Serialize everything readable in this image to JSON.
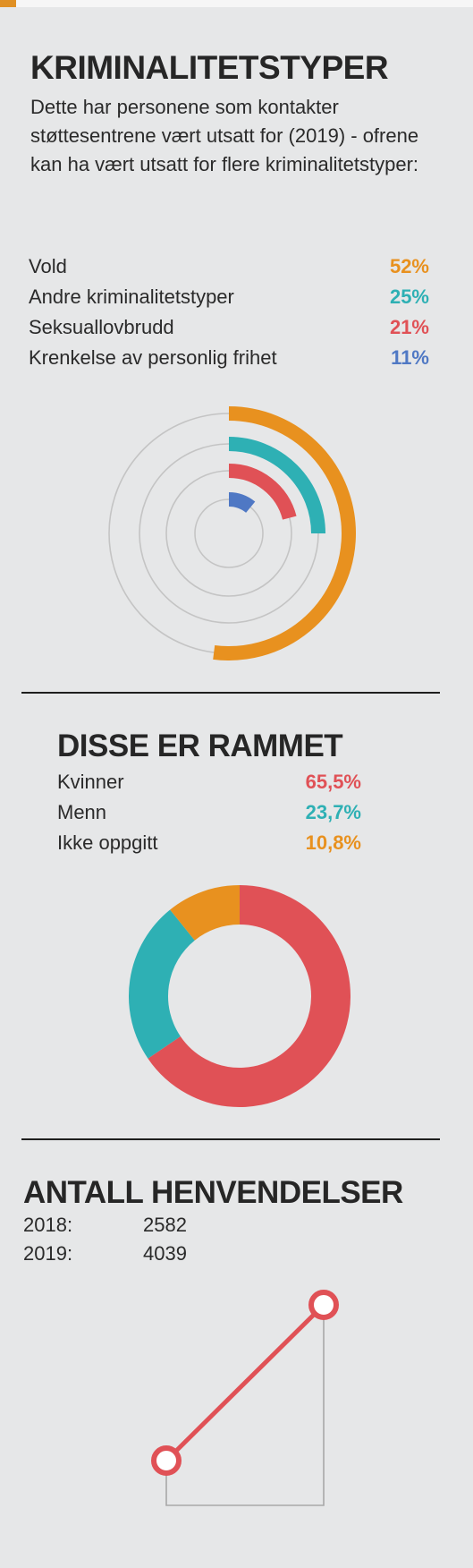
{
  "colors": {
    "orange": "#e8911f",
    "teal": "#2eb0b4",
    "red": "#e05156",
    "blue": "#4f78c4",
    "grid": "#c4c4c4",
    "dark": "#262626"
  },
  "section1": {
    "title": "KRIMINALITETSTYPER",
    "intro": "Dette har personene som kontakter støttesentrene vært utsatt for (2019) - ofrene kan ha vært utsatt for flere kriminalitetstyper:"
  },
  "section2": {
    "title": "DISSE ER RAMMET"
  },
  "section3": {
    "title": "ANTALL HENVENDELSER"
  },
  "chart_data": [
    {
      "type": "radial-bar",
      "title": "KRIMINALITETSTYPER",
      "categories": [
        "Vold",
        "Andre kriminalitetstyper",
        "Seksuallovbrudd",
        "Krenkelse av personlig frihet"
      ],
      "values": [
        52,
        25,
        21,
        11
      ],
      "labels": [
        "52%",
        "25%",
        "21%",
        "11%"
      ],
      "colors": [
        "#e8911f",
        "#2eb0b4",
        "#e05156",
        "#4f78c4"
      ]
    },
    {
      "type": "pie",
      "title": "DISSE ER RAMMET",
      "categories": [
        "Kvinner",
        "Menn",
        "Ikke oppgitt"
      ],
      "values": [
        65.5,
        23.7,
        10.8
      ],
      "labels": [
        "65,5%",
        "23,7%",
        "10,8%"
      ],
      "colors": [
        "#e05156",
        "#2eb0b4",
        "#e8911f"
      ]
    },
    {
      "type": "line",
      "title": "ANTALL HENVENDELSER",
      "x": [
        "2018:",
        "2019:"
      ],
      "values": [
        2582,
        4039
      ],
      "labels": [
        "2582",
        "4039"
      ],
      "color": "#e05156"
    }
  ]
}
